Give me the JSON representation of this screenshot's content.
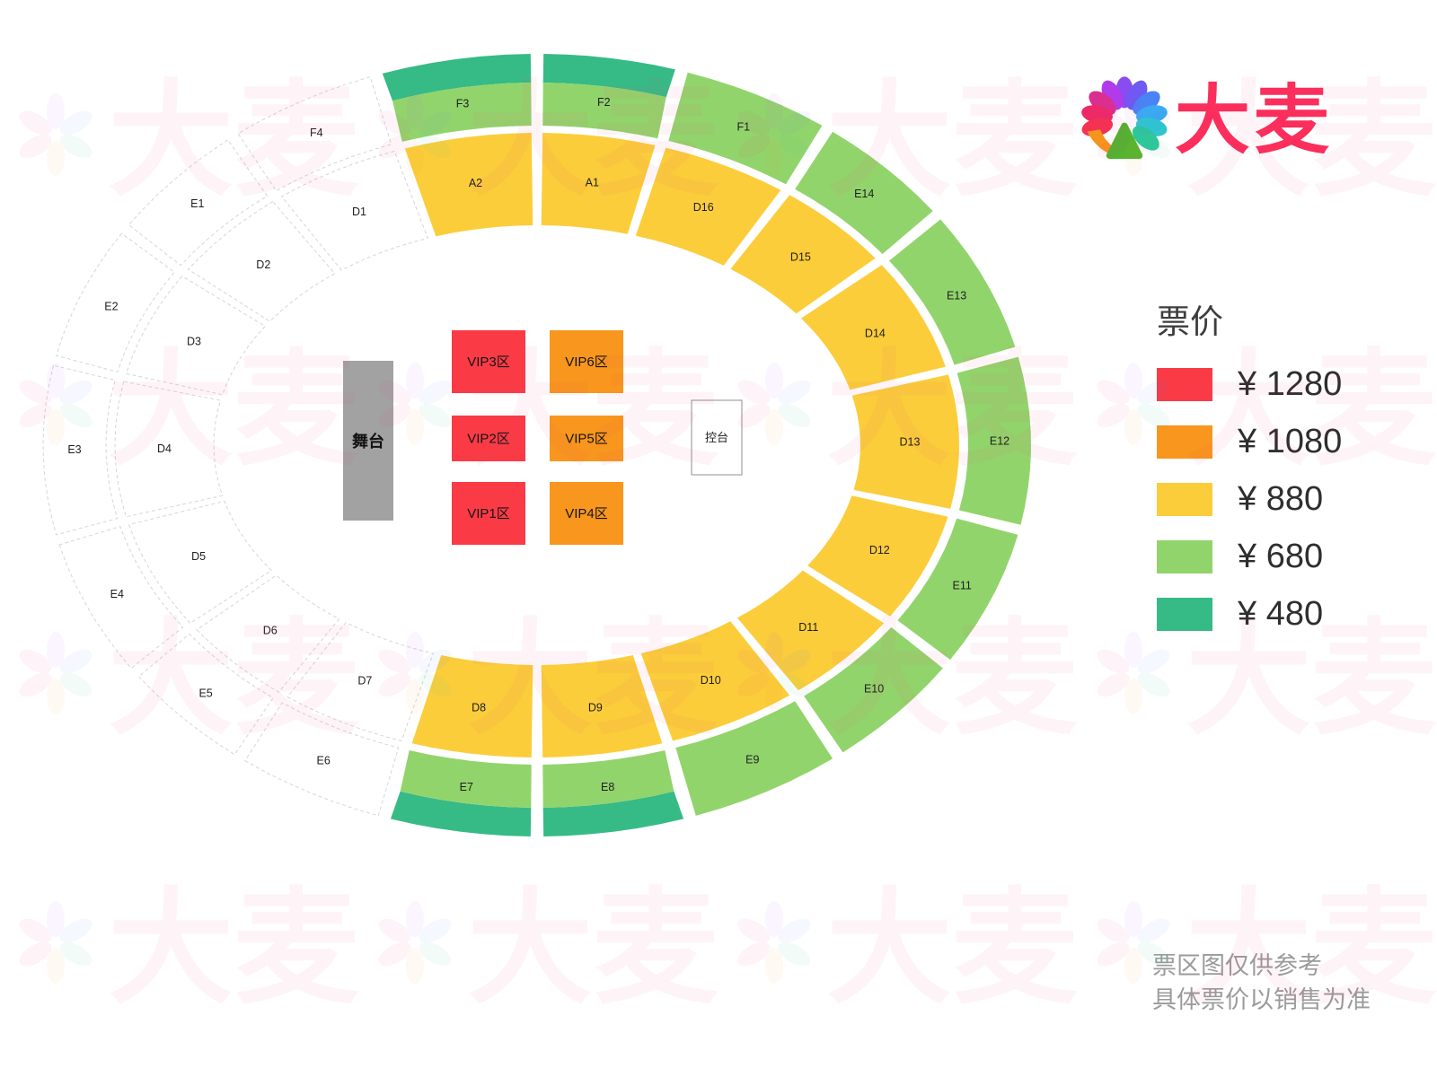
{
  "brand": {
    "name": "大麦",
    "color": "#FB2E5C"
  },
  "legend": {
    "title": "票价",
    "items": [
      {
        "tier": "red",
        "price": "¥ 1280"
      },
      {
        "tier": "orange",
        "price": "¥ 1080"
      },
      {
        "tier": "yellow",
        "price": "¥ 880"
      },
      {
        "tier": "green",
        "price": "¥ 680"
      },
      {
        "tier": "teal",
        "price": "¥ 480"
      }
    ]
  },
  "tiers": {
    "red": "#FA3B46",
    "orange": "#F8961D",
    "yellow": "#FBCD3B",
    "green": "#92D46C",
    "teal": "#36BB86",
    "white": "#FFFFFF"
  },
  "stage": {
    "label": "舞台"
  },
  "control": {
    "label": "控台"
  },
  "vip_grid": [
    [
      {
        "label": "VIP3区",
        "tier": "red"
      },
      {
        "label": "VIP6区",
        "tier": "orange"
      }
    ],
    [
      {
        "label": "VIP2区",
        "tier": "red"
      },
      {
        "label": "VIP5区",
        "tier": "orange"
      }
    ],
    [
      {
        "label": "VIP1区",
        "tier": "red"
      },
      {
        "label": "VIP4区",
        "tier": "orange"
      }
    ]
  ],
  "map": {
    "outer_ring": [
      {
        "id": "F3",
        "tier": "green",
        "teal_band": true
      },
      {
        "id": "F4",
        "tier": "white"
      },
      {
        "id": "E1",
        "tier": "white"
      },
      {
        "id": "E2",
        "tier": "white"
      },
      {
        "id": "E3",
        "tier": "white"
      },
      {
        "id": "E4",
        "tier": "white"
      },
      {
        "id": "E5",
        "tier": "white"
      },
      {
        "id": "E6",
        "tier": "white"
      },
      {
        "id": "E7",
        "tier": "green",
        "teal_band": true
      },
      {
        "id": "E8",
        "tier": "green",
        "teal_band": true
      },
      {
        "id": "E9",
        "tier": "green"
      },
      {
        "id": "E10",
        "tier": "green"
      },
      {
        "id": "E11",
        "tier": "green"
      },
      {
        "id": "E12",
        "tier": "green"
      },
      {
        "id": "E13",
        "tier": "green"
      },
      {
        "id": "E14",
        "tier": "green"
      },
      {
        "id": "F1",
        "tier": "green"
      },
      {
        "id": "F2",
        "tier": "green",
        "teal_band": true
      }
    ],
    "middle_ring": [
      {
        "id": "A2",
        "tier": "yellow"
      },
      {
        "id": "D1",
        "tier": "white"
      },
      {
        "id": "D2",
        "tier": "white"
      },
      {
        "id": "D3",
        "tier": "white"
      },
      {
        "id": "D4",
        "tier": "white"
      },
      {
        "id": "D5",
        "tier": "white"
      },
      {
        "id": "D6",
        "tier": "white"
      },
      {
        "id": "D7",
        "tier": "white"
      },
      {
        "id": "D8",
        "tier": "yellow"
      },
      {
        "id": "D9",
        "tier": "yellow"
      },
      {
        "id": "D10",
        "tier": "yellow"
      },
      {
        "id": "D11",
        "tier": "yellow"
      },
      {
        "id": "D12",
        "tier": "yellow"
      },
      {
        "id": "D13",
        "tier": "yellow"
      },
      {
        "id": "D14",
        "tier": "yellow"
      },
      {
        "id": "D15",
        "tier": "yellow"
      },
      {
        "id": "D16",
        "tier": "yellow"
      },
      {
        "id": "A1",
        "tier": "yellow"
      }
    ]
  },
  "disclaimer": {
    "line1": "票区图仅供参考",
    "line2": "具体票价以销售为准"
  }
}
